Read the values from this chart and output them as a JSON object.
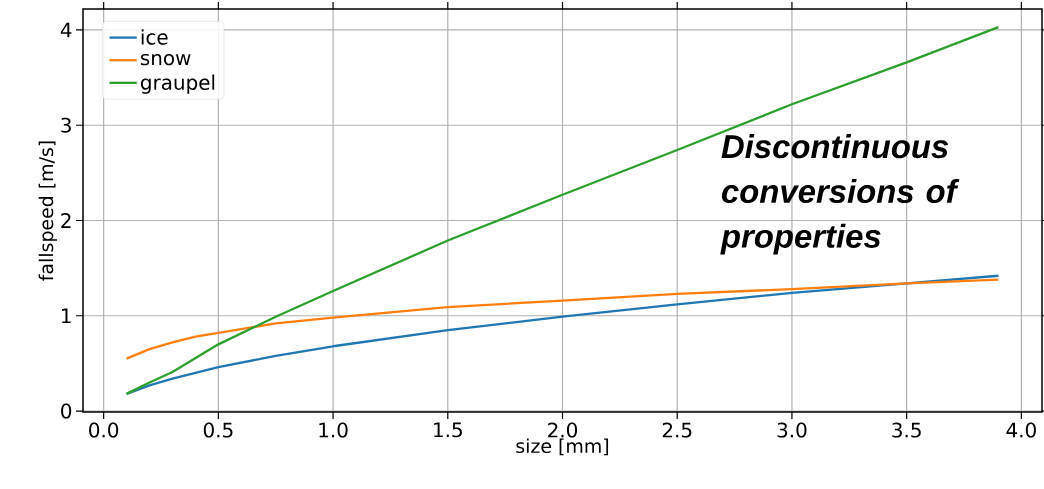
{
  "chart_data": {
    "type": "line",
    "xlabel": "size   [mm]",
    "ylabel": "fallspeed   [m/s]",
    "xlim": [
      -0.09,
      4.09
    ],
    "ylim": [
      -0.01,
      4.22
    ],
    "xticks": [
      {
        "value": 0,
        "label": "0.0"
      },
      {
        "value": 0.5,
        "label": "0.5"
      },
      {
        "value": 1,
        "label": "1.0"
      },
      {
        "value": 1.5,
        "label": "1.5"
      },
      {
        "value": 2,
        "label": "2.0"
      },
      {
        "value": 2.5,
        "label": "2.5"
      },
      {
        "value": 3,
        "label": "3.0"
      },
      {
        "value": 3.5,
        "label": "3.5"
      },
      {
        "value": 4,
        "label": "4.0"
      }
    ],
    "yticks": [
      0,
      1,
      2,
      3,
      4
    ],
    "grid": true,
    "legend": "top left",
    "marker": "none",
    "line_style": "solid",
    "annotations": [
      "Discontinuous conversions of properties"
    ],
    "series": [
      {
        "name": "ice",
        "color": "#1f77b4",
        "x": [
          0.1,
          0.2,
          0.3,
          0.5,
          0.75,
          1.0,
          1.5,
          2.0,
          2.5,
          3.0,
          3.5,
          3.9
        ],
        "values": [
          0.18,
          0.27,
          0.34,
          0.46,
          0.58,
          0.68,
          0.85,
          0.99,
          1.12,
          1.24,
          1.34,
          1.42
        ]
      },
      {
        "name": "snow",
        "color": "#ff7f0e",
        "x": [
          0.1,
          0.2,
          0.3,
          0.4,
          0.5,
          0.75,
          1.0,
          1.5,
          2.0,
          2.5,
          3.0,
          3.5,
          3.9
        ],
        "values": [
          0.55,
          0.65,
          0.72,
          0.78,
          0.82,
          0.92,
          0.98,
          1.09,
          1.16,
          1.23,
          1.28,
          1.34,
          1.38
        ]
      },
      {
        "name": "graupel",
        "color": "#2ca02c",
        "x": [
          0.1,
          0.2,
          0.3,
          0.5,
          0.75,
          1.0,
          1.5,
          2.0,
          2.5,
          3.0,
          3.5,
          3.9
        ],
        "values": [
          0.18,
          0.3,
          0.41,
          0.7,
          0.99,
          1.26,
          1.79,
          2.27,
          2.74,
          3.22,
          3.66,
          4.03
        ]
      }
    ]
  }
}
